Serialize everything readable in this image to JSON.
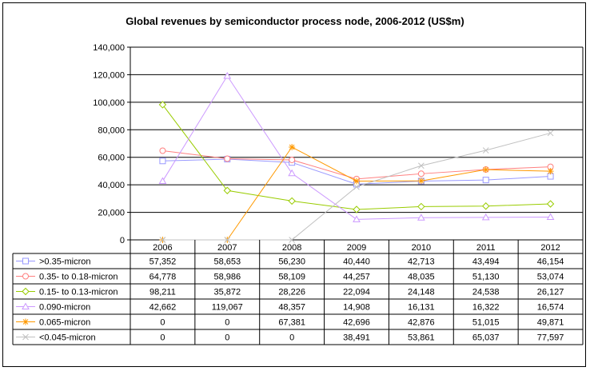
{
  "chart_data": {
    "type": "line",
    "title": "Global revenues by semiconductor process node, 2006-2012 (US$m)",
    "xlabel": "",
    "ylabel": "",
    "categories": [
      "2006",
      "2007",
      "2008",
      "2009",
      "2010",
      "2011",
      "2012"
    ],
    "ylim": [
      0,
      140000
    ],
    "yticks": [
      "0",
      "20,000",
      "40,000",
      "60,000",
      "80,000",
      "100,000",
      "120,000",
      "140,000"
    ],
    "grid": true,
    "legend": "data-table",
    "series": [
      {
        "name": ">0.35-micron",
        "color": "#9999ff",
        "marker": "square",
        "values": [
          57352,
          58653,
          56230,
          40440,
          42713,
          43494,
          46154
        ],
        "labels": [
          "57,352",
          "58,653",
          "56,230",
          "40,440",
          "42,713",
          "43,494",
          "46,154"
        ]
      },
      {
        "name": "0.35- to 0.18-micron",
        "color": "#ff8080",
        "marker": "circle",
        "values": [
          64778,
          58986,
          58109,
          44257,
          48035,
          51130,
          53074
        ],
        "labels": [
          "64,778",
          "58,986",
          "58,109",
          "44,257",
          "48,035",
          "51,130",
          "53,074"
        ]
      },
      {
        "name": "0.15- to 0.13-micron",
        "color": "#99cc00",
        "marker": "diamond",
        "values": [
          98211,
          35872,
          28226,
          22094,
          24148,
          24538,
          26127
        ],
        "labels": [
          "98,211",
          "35,872",
          "28,226",
          "22,094",
          "24,148",
          "24,538",
          "26,127"
        ]
      },
      {
        "name": "0.090-micron",
        "color": "#cc99ff",
        "marker": "triangle",
        "values": [
          42662,
          119067,
          48357,
          14908,
          16131,
          16322,
          16574
        ],
        "labels": [
          "42,662",
          "119,067",
          "48,357",
          "14,908",
          "16,131",
          "16,322",
          "16,574"
        ]
      },
      {
        "name": "0.065-micron",
        "color": "#ff9900",
        "marker": "star",
        "values": [
          0,
          0,
          67381,
          42696,
          42876,
          51015,
          49871
        ],
        "labels": [
          "0",
          "0",
          "67,381",
          "42,696",
          "42,876",
          "51,015",
          "49,871"
        ]
      },
      {
        "name": "<0.045-micron",
        "color": "#c0c0c0",
        "marker": "x",
        "values": [
          0,
          0,
          0,
          38491,
          53861,
          65037,
          77597
        ],
        "labels": [
          "0",
          "0",
          "0",
          "38,491",
          "53,861",
          "65,037",
          "77,597"
        ]
      }
    ]
  }
}
